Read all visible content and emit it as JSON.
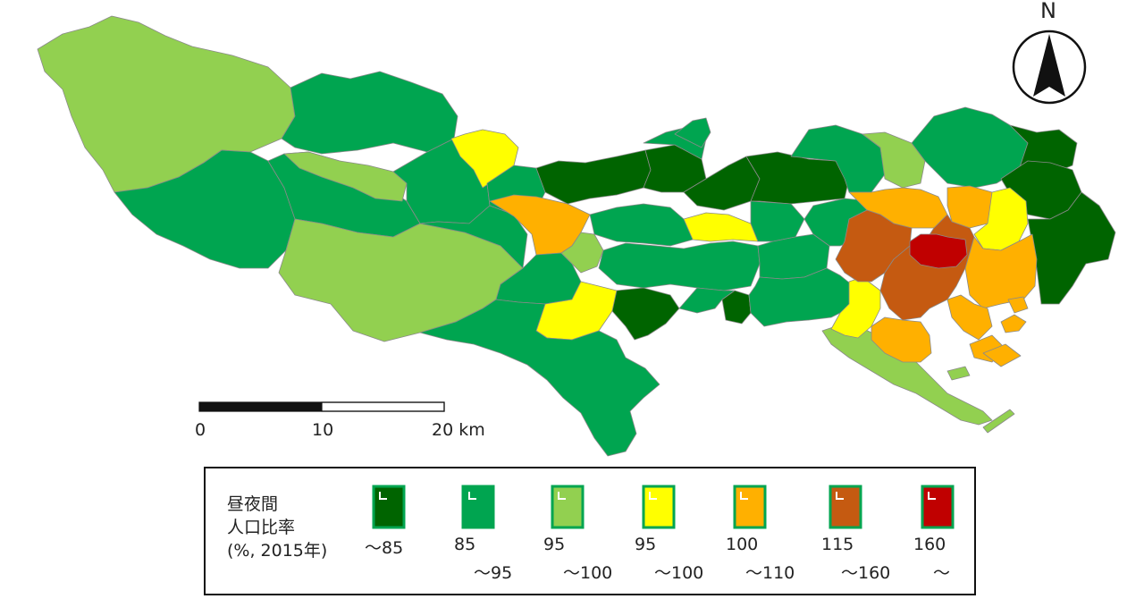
{
  "legend": {
    "title_lines": [
      "昼夜間",
      "人口比率",
      "(%, 2015年)"
    ],
    "classes": [
      {
        "label_1": "〜85",
        "label_2": "",
        "color": "#006400"
      },
      {
        "label_1": "85",
        "label_2": "〜95",
        "color": "#00a550"
      },
      {
        "label_1": "95",
        "label_2": "〜100",
        "color": "#92d050"
      },
      {
        "label_1": "95",
        "label_2": "〜100",
        "color": "#ffff00"
      },
      {
        "label_1": "100",
        "label_2": "〜110",
        "color": "#ffb000"
      },
      {
        "label_1": "115",
        "label_2": "〜160",
        "color": "#c55a11"
      },
      {
        "label_1": "160",
        "label_2": "〜",
        "color": "#c00000"
      }
    ]
  },
  "scale_bar": {
    "labels": [
      "0",
      "10",
      "20 km"
    ]
  },
  "north_arrow": {
    "label": "N"
  },
  "colors": {
    "cls_lt85": "#006400",
    "cls_85_95": "#00a550",
    "cls_95_100_green": "#92d050",
    "cls_95_100_yellow": "#ffff00",
    "cls_100_110": "#ffb000",
    "cls_115_160": "#c55a11",
    "cls_160": "#c00000",
    "boundary": "#8a8a8a"
  }
}
